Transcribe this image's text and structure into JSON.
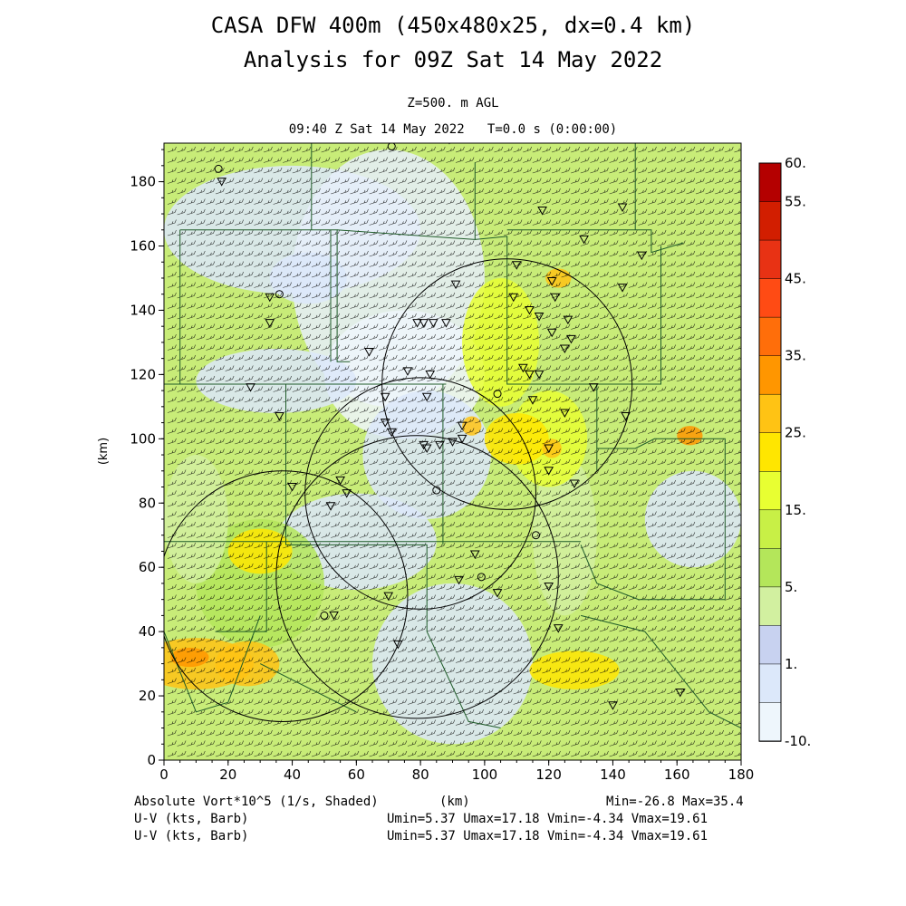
{
  "header": {
    "title_line1": "CASA DFW 400m (450x480x25, dx=0.4 km)",
    "title_line2": "Analysis for 09Z Sat 14 May 2022",
    "level": "Z=500. m AGL",
    "time": "09:40 Z Sat 14 May 2022   T=0.0 s (0:00:00)"
  },
  "footer": {
    "field_label": "Absolute Vort*10^5 (1/s, Shaded)",
    "x_unit": "(km)",
    "minmax": "Min=-26.8 Max=35.4",
    "wind_label_1": "U-V (kts, Barb)",
    "wind_stats_1": "Umin=5.37 Umax=17.18 Vmin=-4.34 Vmax=19.61",
    "wind_label_2": "U-V (kts, Barb)",
    "wind_stats_2": "Umin=5.37 Umax=17.18 Vmin=-4.34 Vmax=19.61"
  },
  "chart_data": {
    "type": "heatmap",
    "xlabel": "(km)",
    "ylabel": "(km)",
    "xlim": [
      0,
      180
    ],
    "ylim": [
      0,
      192
    ],
    "x_ticks": [
      0,
      20,
      40,
      60,
      80,
      100,
      120,
      140,
      160,
      180
    ],
    "y_ticks": [
      0,
      20,
      40,
      60,
      80,
      100,
      120,
      140,
      160,
      180
    ],
    "colorbar": {
      "labels": [
        "60.",
        "55.",
        "45.",
        "35.",
        "25.",
        "15.",
        "5.",
        "1.",
        "-10."
      ],
      "colors": [
        "#b40000",
        "#d21e00",
        "#e83214",
        "#ff4b14",
        "#ff6e0a",
        "#ff9600",
        "#ffc314",
        "#ffe600",
        "#e8ff32",
        "#c8f046",
        "#b4e65a",
        "#d2f0a0",
        "#c8d2f0",
        "#dce8fa",
        "#eef6fc"
      ]
    },
    "radar_circles": [
      {
        "cx": 107,
        "cy": 117,
        "r": 39
      },
      {
        "cx": 80,
        "cy": 83,
        "r": 36
      },
      {
        "cx": 37,
        "cy": 51,
        "r": 39
      },
      {
        "cx": 79,
        "cy": 57,
        "r": 44
      }
    ],
    "station_markers": [
      {
        "x": 18,
        "y": 180,
        "m": "triangle"
      },
      {
        "x": 17,
        "y": 184,
        "m": "circle"
      },
      {
        "x": 71,
        "y": 191,
        "m": "circle"
      },
      {
        "x": 89,
        "y": 193,
        "m": "triangle"
      },
      {
        "x": 118,
        "y": 171,
        "m": "triangle"
      },
      {
        "x": 143,
        "y": 172,
        "m": "triangle"
      },
      {
        "x": 131,
        "y": 162,
        "m": "triangle"
      },
      {
        "x": 149,
        "y": 157,
        "m": "triangle"
      },
      {
        "x": 33,
        "y": 144,
        "m": "triangle"
      },
      {
        "x": 36,
        "y": 145,
        "m": "circle"
      },
      {
        "x": 33,
        "y": 136,
        "m": "triangle"
      },
      {
        "x": 27,
        "y": 116,
        "m": "triangle"
      },
      {
        "x": 36,
        "y": 107,
        "m": "triangle"
      },
      {
        "x": 64,
        "y": 127,
        "m": "triangle"
      },
      {
        "x": 76,
        "y": 121,
        "m": "triangle"
      },
      {
        "x": 83,
        "y": 120,
        "m": "triangle"
      },
      {
        "x": 82,
        "y": 113,
        "m": "triangle"
      },
      {
        "x": 69,
        "y": 113,
        "m": "triangle"
      },
      {
        "x": 79,
        "y": 136,
        "m": "triangle"
      },
      {
        "x": 81,
        "y": 136,
        "m": "triangle"
      },
      {
        "x": 84,
        "y": 136,
        "m": "triangle"
      },
      {
        "x": 88,
        "y": 136,
        "m": "triangle"
      },
      {
        "x": 91,
        "y": 148,
        "m": "triangle"
      },
      {
        "x": 110,
        "y": 154,
        "m": "triangle"
      },
      {
        "x": 109,
        "y": 144,
        "m": "triangle"
      },
      {
        "x": 114,
        "y": 140,
        "m": "triangle"
      },
      {
        "x": 117,
        "y": 138,
        "m": "triangle"
      },
      {
        "x": 121,
        "y": 149,
        "m": "triangle"
      },
      {
        "x": 122,
        "y": 144,
        "m": "triangle"
      },
      {
        "x": 126,
        "y": 137,
        "m": "triangle"
      },
      {
        "x": 121,
        "y": 133,
        "m": "triangle"
      },
      {
        "x": 127,
        "y": 131,
        "m": "triangle"
      },
      {
        "x": 125,
        "y": 128,
        "m": "triangle"
      },
      {
        "x": 143,
        "y": 147,
        "m": "triangle"
      },
      {
        "x": 112,
        "y": 122,
        "m": "triangle"
      },
      {
        "x": 114,
        "y": 120,
        "m": "triangle"
      },
      {
        "x": 117,
        "y": 120,
        "m": "triangle"
      },
      {
        "x": 104,
        "y": 114,
        "m": "circle"
      },
      {
        "x": 115,
        "y": 112,
        "m": "triangle"
      },
      {
        "x": 134,
        "y": 116,
        "m": "triangle"
      },
      {
        "x": 125,
        "y": 108,
        "m": "triangle"
      },
      {
        "x": 144,
        "y": 107,
        "m": "triangle"
      },
      {
        "x": 69,
        "y": 105,
        "m": "triangle"
      },
      {
        "x": 71,
        "y": 102,
        "m": "triangle"
      },
      {
        "x": 81,
        "y": 98,
        "m": "triangle"
      },
      {
        "x": 82,
        "y": 97,
        "m": "triangle"
      },
      {
        "x": 86,
        "y": 98,
        "m": "triangle"
      },
      {
        "x": 90,
        "y": 99,
        "m": "triangle"
      },
      {
        "x": 93,
        "y": 100,
        "m": "triangle"
      },
      {
        "x": 93,
        "y": 104,
        "m": "triangle"
      },
      {
        "x": 120,
        "y": 97,
        "m": "triangle"
      },
      {
        "x": 120,
        "y": 90,
        "m": "triangle"
      },
      {
        "x": 128,
        "y": 86,
        "m": "triangle"
      },
      {
        "x": 55,
        "y": 87,
        "m": "triangle"
      },
      {
        "x": 57,
        "y": 83,
        "m": "triangle"
      },
      {
        "x": 52,
        "y": 79,
        "m": "triangle"
      },
      {
        "x": 40,
        "y": 85,
        "m": "triangle"
      },
      {
        "x": 85,
        "y": 84,
        "m": "circle"
      },
      {
        "x": 116,
        "y": 70,
        "m": "circle"
      },
      {
        "x": 97,
        "y": 64,
        "m": "triangle"
      },
      {
        "x": 92,
        "y": 56,
        "m": "triangle"
      },
      {
        "x": 99,
        "y": 57,
        "m": "circle"
      },
      {
        "x": 104,
        "y": 52,
        "m": "triangle"
      },
      {
        "x": 120,
        "y": 54,
        "m": "triangle"
      },
      {
        "x": 70,
        "y": 51,
        "m": "triangle"
      },
      {
        "x": 53,
        "y": 45,
        "m": "triangle"
      },
      {
        "x": 50,
        "y": 45,
        "m": "circle"
      },
      {
        "x": 123,
        "y": 41,
        "m": "triangle"
      },
      {
        "x": 73,
        "y": 36,
        "m": "triangle"
      },
      {
        "x": 140,
        "y": 17,
        "m": "triangle"
      },
      {
        "x": 161,
        "y": 21,
        "m": "triangle"
      }
    ]
  }
}
